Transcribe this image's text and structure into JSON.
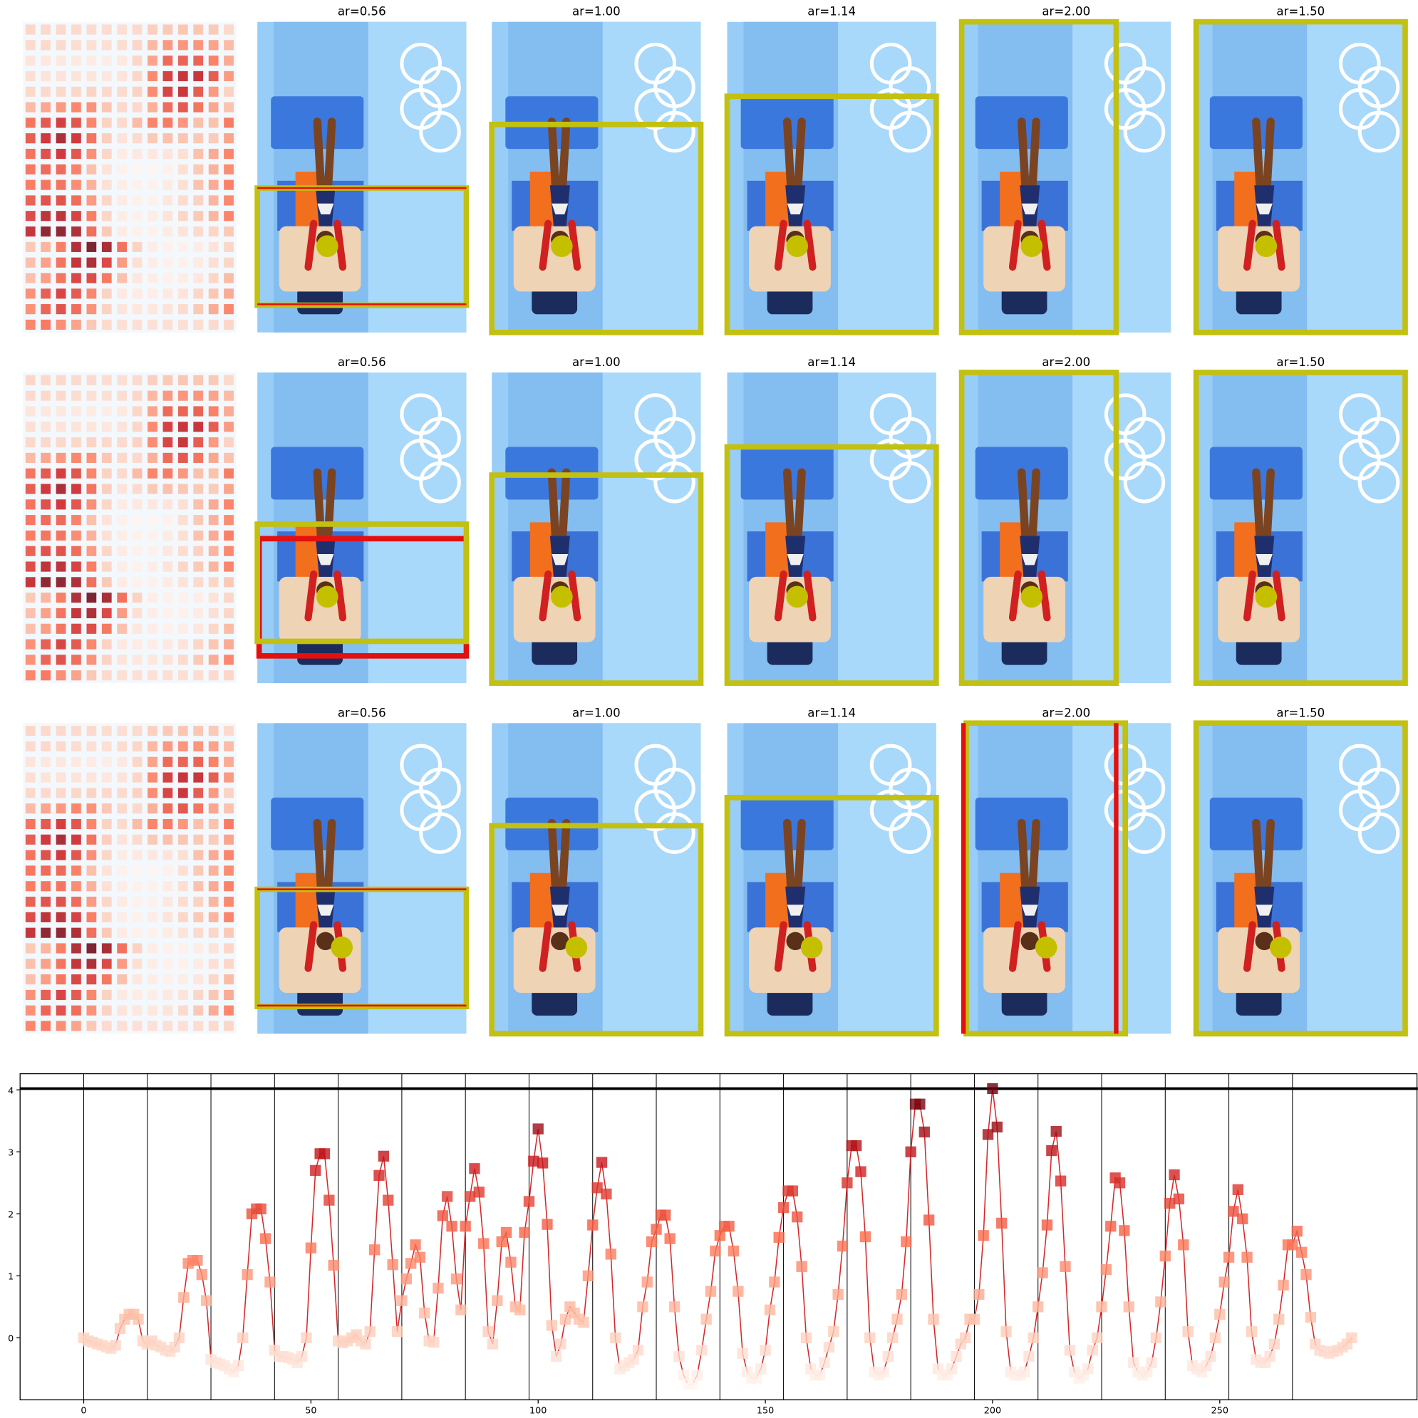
{
  "panel_rows": [
    {
      "titles": [
        "ar=0.56",
        "ar=1.00",
        "ar=1.14",
        "ar=2.00",
        "ar=1.50"
      ]
    },
    {
      "titles": [
        "ar=0.56",
        "ar=1.00",
        "ar=1.14",
        "ar=2.00",
        "ar=1.50"
      ]
    },
    {
      "titles": [
        "ar=0.56",
        "ar=1.00",
        "ar=1.14",
        "ar=2.00",
        "ar=1.50"
      ]
    }
  ],
  "chart_data": {
    "type": "line",
    "x": [
      0,
      1,
      2,
      3,
      4,
      5,
      6,
      7,
      8,
      9,
      10,
      11,
      12,
      13,
      14,
      15,
      16,
      17,
      18,
      19,
      20,
      21,
      22,
      23,
      24,
      25,
      26,
      27,
      28,
      29,
      30,
      31,
      32,
      33,
      34,
      35,
      36,
      37,
      38,
      39,
      40,
      41,
      42,
      43,
      44,
      45,
      46,
      47,
      48,
      49,
      50,
      51,
      52,
      53,
      54,
      55,
      56,
      57,
      58,
      59,
      60,
      61,
      62,
      63,
      64,
      65,
      66,
      67,
      68,
      69,
      70,
      71,
      72,
      73,
      74,
      75,
      76,
      77,
      78,
      79,
      80,
      81,
      82,
      83,
      84,
      85,
      86,
      87,
      88,
      89,
      90,
      91,
      92,
      93,
      94,
      95,
      96,
      97,
      98,
      99,
      100,
      101,
      102,
      103,
      104,
      105,
      106,
      107,
      108,
      109,
      110,
      111,
      112,
      113,
      114,
      115,
      116,
      117,
      118,
      119,
      120,
      121,
      122,
      123,
      124,
      125,
      126,
      127,
      128,
      129,
      130,
      131,
      132,
      133,
      134,
      135,
      136,
      137,
      138,
      139,
      140,
      141,
      142,
      143,
      144,
      145,
      146,
      147,
      148,
      149,
      150,
      151,
      152,
      153,
      154,
      155,
      156,
      157,
      158,
      159,
      160,
      161,
      162,
      163,
      164,
      165,
      166,
      167,
      168,
      169,
      170,
      171,
      172,
      173,
      174,
      175,
      176,
      177,
      178,
      179,
      180,
      181,
      182,
      183,
      184,
      185,
      186,
      187,
      188,
      189,
      190,
      191,
      192,
      193,
      194,
      195,
      196,
      197,
      198,
      199,
      200,
      201,
      202,
      203,
      204,
      205,
      206,
      207,
      208,
      209,
      210,
      211,
      212,
      213,
      214,
      215,
      216,
      217,
      218,
      219,
      220,
      221,
      222,
      223,
      224,
      225,
      226,
      227,
      228,
      229,
      230,
      231,
      232,
      233,
      234,
      235,
      236,
      237,
      238,
      239,
      240,
      241,
      242,
      243,
      244,
      245,
      246,
      247,
      248,
      249,
      250,
      251,
      252,
      253,
      254,
      255,
      256,
      257,
      258,
      259,
      260,
      261,
      262,
      263,
      264,
      265,
      266,
      267,
      268,
      269,
      270,
      271,
      272,
      273,
      274,
      275,
      276,
      277,
      278,
      279
    ],
    "series": [
      {
        "color": "#d62728",
        "values": [
          0.0,
          -0.05,
          -0.07,
          -0.1,
          -0.12,
          -0.15,
          -0.17,
          -0.12,
          0.15,
          0.3,
          0.38,
          0.38,
          0.3,
          -0.05,
          -0.1,
          -0.05,
          -0.12,
          -0.15,
          -0.2,
          -0.22,
          -0.15,
          0.0,
          0.65,
          1.2,
          1.25,
          1.25,
          1.02,
          0.6,
          -0.35,
          -0.4,
          -0.42,
          -0.45,
          -0.5,
          -0.55,
          -0.45,
          0.0,
          1.02,
          2.0,
          2.08,
          2.08,
          1.6,
          0.9,
          -0.2,
          -0.3,
          -0.3,
          -0.32,
          -0.35,
          -0.4,
          -0.3,
          0.0,
          1.45,
          2.7,
          2.97,
          2.97,
          2.22,
          1.17,
          -0.05,
          -0.08,
          -0.05,
          0.0,
          0.05,
          -0.05,
          -0.1,
          0.1,
          1.42,
          2.62,
          2.93,
          2.22,
          1.18,
          0.1,
          0.6,
          0.95,
          1.2,
          1.5,
          1.3,
          0.4,
          -0.05,
          -0.07,
          0.8,
          1.97,
          2.28,
          1.8,
          0.95,
          0.45,
          1.8,
          2.28,
          2.73,
          2.35,
          1.52,
          0.1,
          -0.1,
          0.6,
          1.55,
          1.7,
          1.22,
          0.5,
          0.45,
          1.7,
          2.2,
          2.85,
          3.37,
          2.82,
          1.83,
          0.2,
          -0.3,
          -0.1,
          0.3,
          0.5,
          0.4,
          0.3,
          0.25,
          1.0,
          1.82,
          2.42,
          2.83,
          2.32,
          1.35,
          0.0,
          -0.5,
          -0.45,
          -0.4,
          -0.35,
          -0.2,
          0.5,
          0.9,
          1.55,
          1.75,
          1.98,
          1.98,
          1.6,
          0.5,
          -0.3,
          -0.6,
          -0.75,
          -0.75,
          -0.6,
          -0.2,
          0.3,
          0.75,
          1.4,
          1.65,
          1.8,
          1.8,
          1.4,
          0.75,
          -0.25,
          -0.55,
          -0.65,
          -0.65,
          -0.5,
          -0.2,
          0.45,
          0.9,
          1.62,
          2.1,
          2.37,
          2.37,
          1.95,
          1.15,
          0.0,
          -0.5,
          -0.6,
          -0.6,
          -0.4,
          -0.15,
          0.1,
          0.7,
          1.48,
          2.5,
          3.1,
          3.1,
          2.68,
          1.63,
          0.0,
          -0.55,
          -0.6,
          -0.55,
          -0.3,
          0.0,
          0.3,
          0.7,
          1.55,
          3.0,
          3.77,
          3.77,
          3.32,
          1.9,
          0.3,
          -0.5,
          -0.6,
          -0.6,
          -0.5,
          -0.3,
          -0.1,
          0.0,
          0.3,
          0.3,
          0.7,
          1.65,
          3.28,
          4.02,
          3.4,
          1.85,
          0.1,
          -0.55,
          -0.6,
          -0.6,
          -0.55,
          -0.3,
          0.0,
          0.5,
          1.05,
          1.82,
          3.02,
          3.33,
          2.53,
          1.15,
          -0.2,
          -0.55,
          -0.65,
          -0.6,
          -0.5,
          -0.2,
          0.0,
          0.5,
          1.1,
          1.8,
          2.58,
          2.5,
          1.73,
          0.5,
          -0.4,
          -0.55,
          -0.6,
          -0.55,
          -0.4,
          0.0,
          0.58,
          1.32,
          2.17,
          2.63,
          2.24,
          1.5,
          0.1,
          -0.45,
          -0.5,
          -0.55,
          -0.45,
          -0.3,
          0.0,
          0.38,
          0.9,
          1.3,
          2.04,
          2.39,
          1.92,
          1.3,
          0.1,
          -0.35,
          -0.4,
          -0.4,
          -0.3,
          -0.1,
          0.3,
          0.85,
          1.5,
          1.5,
          1.72,
          1.38,
          1.02,
          0.33,
          -0.1,
          -0.2,
          -0.22,
          -0.25,
          -0.22,
          -0.2,
          -0.15,
          -0.1,
          0.0
        ]
      }
    ],
    "xlim": [
      -14,
      293.6
    ],
    "ylim": [
      -1.0,
      4.26
    ],
    "xticks": [
      0,
      50,
      100,
      150,
      200,
      250
    ],
    "yticks": [
      0,
      1,
      2,
      3,
      4
    ],
    "vlines": [
      0,
      14,
      28,
      42,
      56,
      70,
      84,
      98,
      112,
      126,
      140,
      154,
      168,
      182,
      196,
      210,
      224,
      238,
      252,
      266
    ],
    "hline": 4.02
  }
}
